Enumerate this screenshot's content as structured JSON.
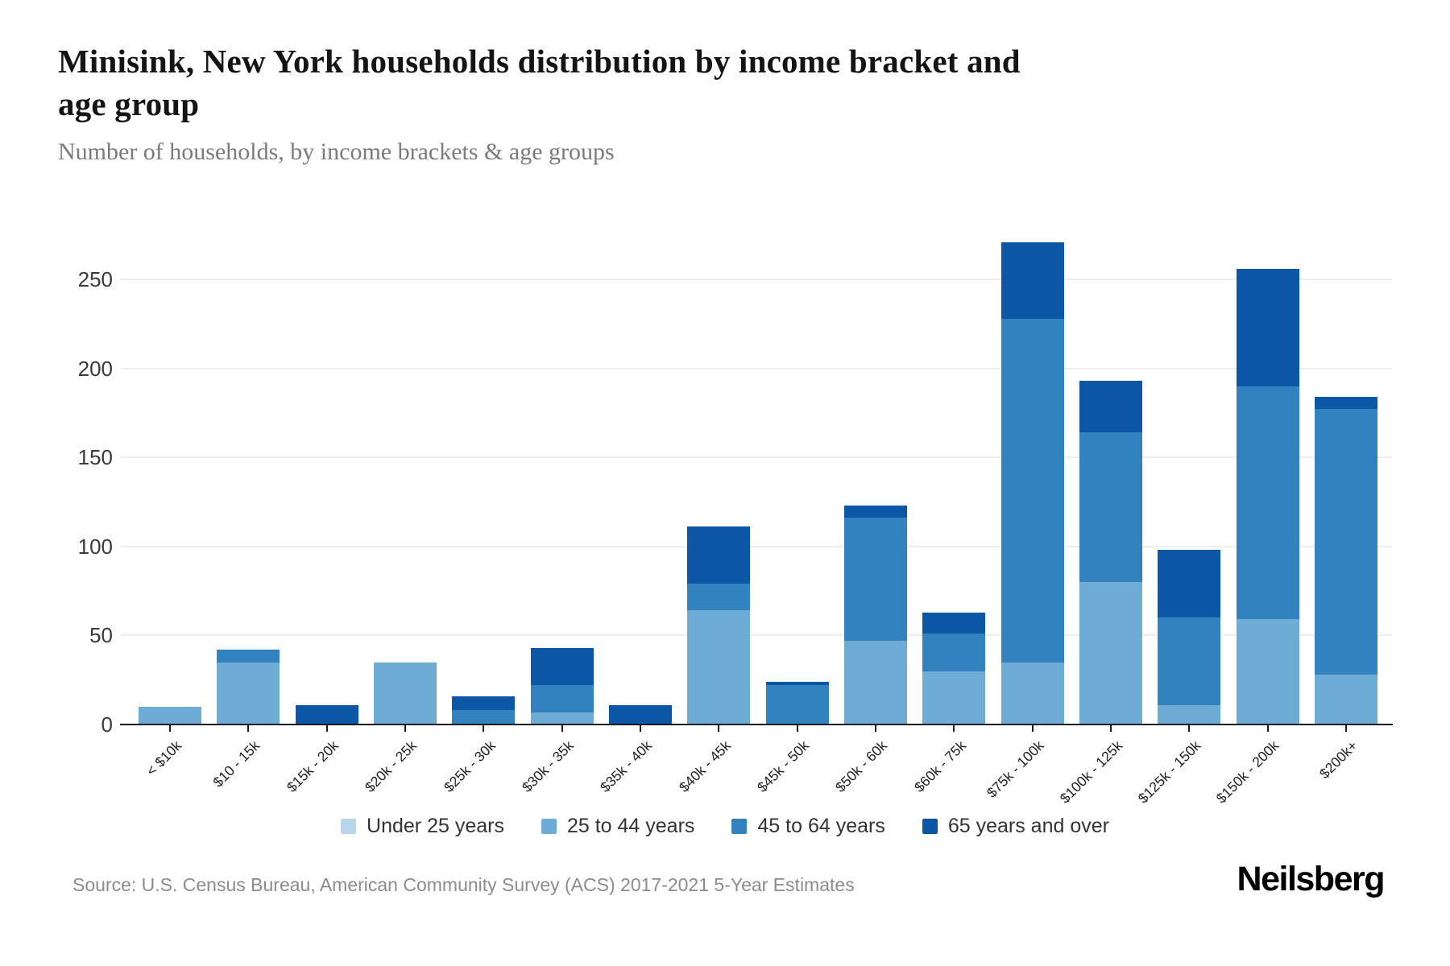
{
  "header": {
    "title_line1": "Minisink, New York households distribution by income bracket and",
    "title_line2": "age group",
    "subtitle": "Number of households, by income brackets & age groups"
  },
  "footer": {
    "source": "Source: U.S. Census Bureau, American Community Survey (ACS) 2017-2021 5-Year Estimates",
    "brand": "Neilsberg"
  },
  "chart_data": {
    "type": "bar",
    "stacked": true,
    "title": "Minisink, New York households distribution by income bracket and age group",
    "subtitle": "Number of households, by income brackets & age groups",
    "categories": [
      "< $10k",
      "$10 - 15k",
      "$15k - 20k",
      "$20k - 25k",
      "$25k - 30k",
      "$30k - 35k",
      "$35k - 40k",
      "$40k - 45k",
      "$45k - 50k",
      "$50k - 60k",
      "$60k - 75k",
      "$75k - 100k",
      "$100k - 125k",
      "$125k - 150k",
      "$150k - 200k",
      "$200k+"
    ],
    "series": [
      {
        "name": "Under 25 years",
        "color": "#b9d6ea",
        "values": [
          0,
          0,
          0,
          0,
          0,
          0,
          0,
          0,
          0,
          0,
          0,
          0,
          0,
          0,
          0,
          0
        ]
      },
      {
        "name": "25 to 44 years",
        "color": "#6facd5",
        "values": [
          10,
          35,
          0,
          35,
          0,
          7,
          0,
          64,
          0,
          47,
          30,
          35,
          80,
          11,
          59,
          28
        ]
      },
      {
        "name": "45 to 64 years",
        "color": "#3182bf",
        "values": [
          0,
          7,
          0,
          0,
          8,
          15,
          0,
          15,
          22,
          69,
          21,
          193,
          84,
          49,
          131,
          149
        ]
      },
      {
        "name": "65 years and over",
        "color": "#0c56a6",
        "values": [
          0,
          0,
          11,
          0,
          8,
          21,
          11,
          32,
          2,
          7,
          12,
          43,
          29,
          38,
          66,
          7
        ]
      }
    ],
    "totals": [
      10,
      42,
      11,
      35,
      16,
      43,
      11,
      111,
      24,
      123,
      63,
      271,
      193,
      98,
      256,
      184
    ],
    "xlabel": "",
    "ylabel": "",
    "ylim": [
      0,
      275
    ],
    "yticks": [
      0,
      50,
      100,
      150,
      200,
      250
    ],
    "grid": true,
    "legend_position": "bottom"
  }
}
